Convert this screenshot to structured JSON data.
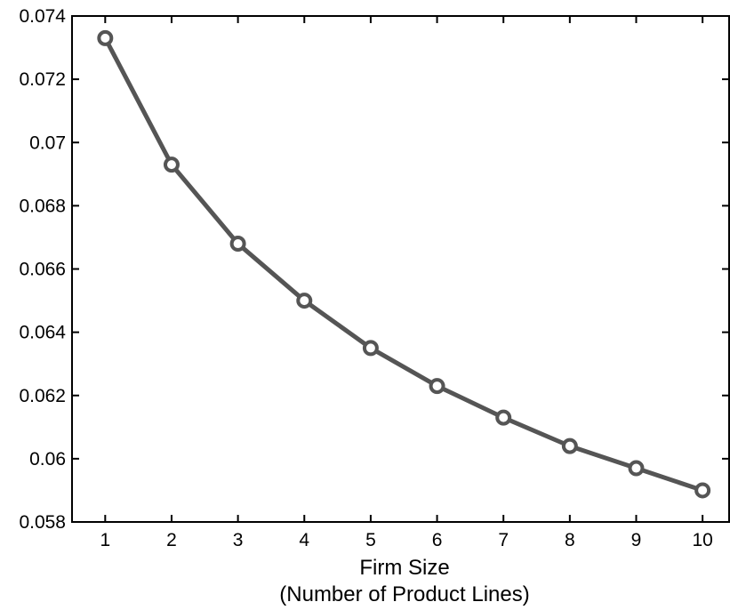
{
  "chart_data": {
    "type": "line",
    "title": "",
    "xlabel": [
      "Firm Size",
      "(Number of Product Lines)"
    ],
    "ylabel": "",
    "xlim": [
      0.5,
      10.4
    ],
    "ylim": [
      0.058,
      0.074
    ],
    "grid": false,
    "legend": "none",
    "x_ticks": [
      "1",
      "2",
      "3",
      "4",
      "5",
      "6",
      "7",
      "8",
      "9",
      "10"
    ],
    "y_ticks": [
      "0.058",
      "0.06",
      "0.062",
      "0.064",
      "0.066",
      "0.068",
      "0.07",
      "0.072",
      "0.074"
    ],
    "x": [
      1,
      2,
      3,
      4,
      5,
      6,
      7,
      8,
      9,
      10
    ],
    "series": [
      {
        "values": [
          0.0733,
          0.0693,
          0.0668,
          0.065,
          0.0635,
          0.0623,
          0.0613,
          0.0604,
          0.0597,
          0.059
        ],
        "color": "#555555",
        "marker": "circle"
      }
    ]
  }
}
